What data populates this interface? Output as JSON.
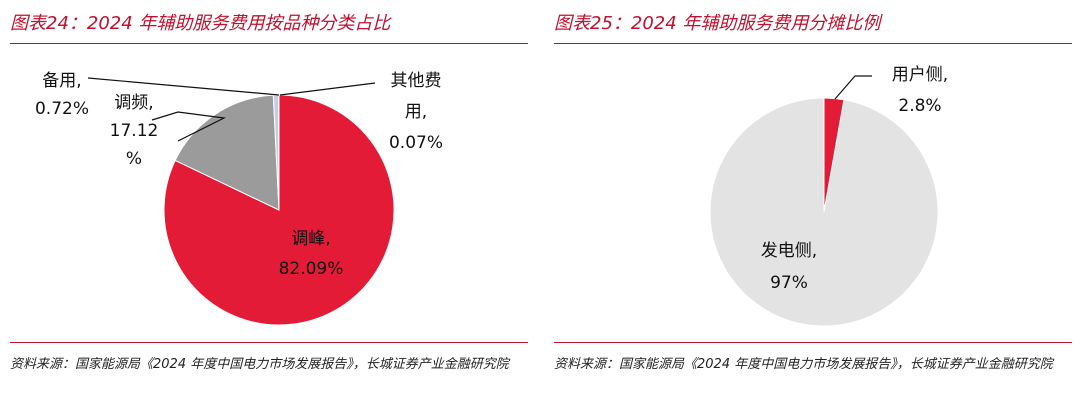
{
  "figures": [
    {
      "title": "图表24：2024 年辅助服务费用按品种分类占比",
      "source": "资料来源：国家能源局《2024 年度中国电力市场发展报告》，长城证券产业金融研究院"
    },
    {
      "title": "图表25：2024 年辅助服务费用分摊比例",
      "source": "资料来源：国家能源局《2024 年度中国电力市场发展报告》，长城证券产业金融研究院"
    }
  ],
  "chart_data": [
    {
      "type": "pie",
      "title": "图表24：2024 年辅助服务费用按品种分类占比",
      "slices": [
        {
          "label": "调峰",
          "value": 82.09,
          "color": "#e31b37"
        },
        {
          "label": "调频",
          "value": 17.12,
          "color": "#9b9b9b"
        },
        {
          "label": "备用",
          "value": 0.72,
          "color": "#c8cde6"
        },
        {
          "label": "其他费用",
          "value": 0.07,
          "color": "#2a2a2a"
        }
      ],
      "data_labels": [
        {
          "lines": [
            "调峰,",
            "82.09%"
          ]
        },
        {
          "lines": [
            "调频,",
            "17.12",
            "%"
          ]
        },
        {
          "lines": [
            "备用,",
            "0.72%"
          ]
        },
        {
          "lines": [
            "其他费",
            "用,",
            "0.07%"
          ]
        }
      ]
    },
    {
      "type": "pie",
      "title": "图表25：2024 年辅助服务费用分摊比例",
      "slices": [
        {
          "label": "用户侧",
          "value": 2.8,
          "color": "#e31b37"
        },
        {
          "label": "发电侧",
          "value": 97,
          "color": "#e3e3e3"
        }
      ],
      "data_labels": [
        {
          "lines": [
            "用户侧,",
            "2.8%"
          ]
        },
        {
          "lines": [
            "发电侧,",
            "97%"
          ]
        }
      ]
    }
  ]
}
